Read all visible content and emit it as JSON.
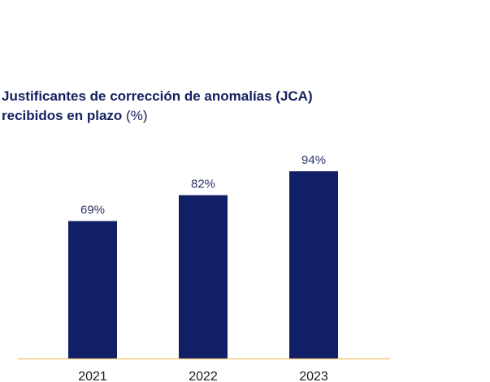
{
  "chart_data": {
    "type": "bar",
    "title": "Justificantes de corrección de anomalías (JCA) recibidos en plazo",
    "title_line1": "Justificantes de corrección de anomalías (JCA)",
    "title_line2": "recibidos en plazo",
    "title_unit": "(%)",
    "categories": [
      "2021",
      "2022",
      "2023"
    ],
    "values": [
      69,
      82,
      94
    ],
    "data_labels": [
      "69%",
      "82%",
      "94%"
    ],
    "ylim": [
      0,
      100
    ],
    "grid": false,
    "legend": "none",
    "bar_color": "#111f66",
    "axis_color": "#f0c36a"
  }
}
